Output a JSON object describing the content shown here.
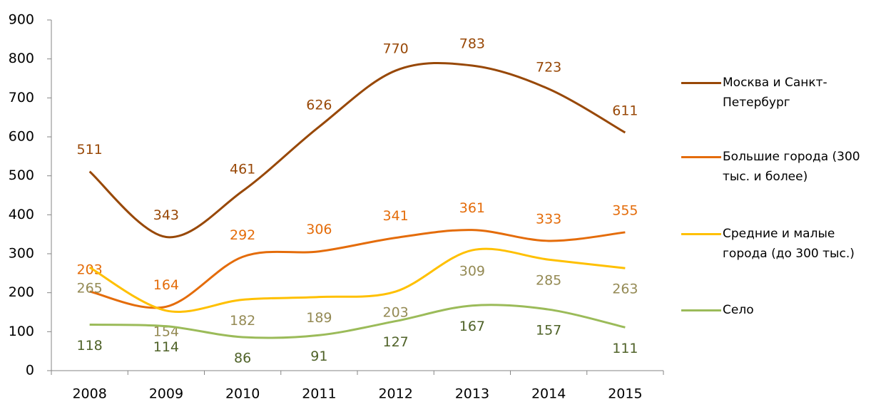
{
  "chart_data": {
    "type": "line",
    "categories": [
      "2008",
      "2009",
      "2010",
      "2011",
      "2012",
      "2013",
      "2014",
      "2015"
    ],
    "series": [
      {
        "name": "Москва и Санкт-Петербург",
        "color": "#984807",
        "label_color": "#984807",
        "values": [
          511,
          343,
          461,
          626,
          770,
          783,
          723,
          611
        ]
      },
      {
        "name": "Большие города (300 тыс. и более)",
        "color": "#e46c0a",
        "label_color": "#e46c0a",
        "values": [
          203,
          164,
          292,
          306,
          341,
          361,
          333,
          355
        ]
      },
      {
        "name": "Средние и малые города (до 300 тыс.)",
        "color": "#ffc000",
        "label_color": "#948a54",
        "values": [
          265,
          154,
          182,
          189,
          203,
          309,
          285,
          263
        ]
      },
      {
        "name": "Село",
        "color": "#9bbb59",
        "label_color": "#4f6228",
        "values": [
          118,
          114,
          86,
          91,
          127,
          167,
          157,
          111
        ]
      }
    ],
    "ylim": [
      0,
      900
    ],
    "yticks": [
      0,
      100,
      200,
      300,
      400,
      500,
      600,
      700,
      800,
      900
    ],
    "smooth": true
  }
}
